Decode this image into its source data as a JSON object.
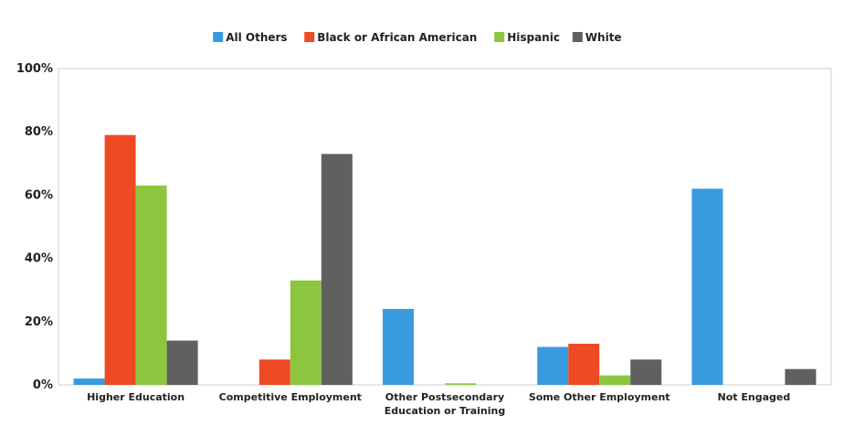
{
  "chart_data": {
    "type": "bar",
    "categories": [
      [
        "Higher Education"
      ],
      [
        "Competitive Employment"
      ],
      [
        "Other Postsecondary",
        "Education or Training"
      ],
      [
        "Some Other Employment"
      ],
      [
        "Not Engaged"
      ]
    ],
    "series": [
      {
        "name": "All Others",
        "color": "#3a9ae0",
        "values": [
          2,
          0,
          24,
          12,
          62
        ]
      },
      {
        "name": "Black or African American",
        "color": "#ee4b24",
        "values": [
          79,
          8,
          0,
          13,
          0
        ]
      },
      {
        "name": "Hispanic",
        "color": "#8cc63f",
        "values": [
          63,
          33,
          0.5,
          3,
          0
        ]
      },
      {
        "name": "White",
        "color": "#606060",
        "values": [
          14,
          73,
          0,
          8,
          5
        ]
      }
    ],
    "yticks": [
      "0%",
      "20%",
      "40%",
      "60%",
      "80%",
      "100%"
    ],
    "ylim": [
      0,
      100
    ],
    "grid": false,
    "legend_position": "top-center",
    "title": "",
    "xlabel": "",
    "ylabel": ""
  }
}
